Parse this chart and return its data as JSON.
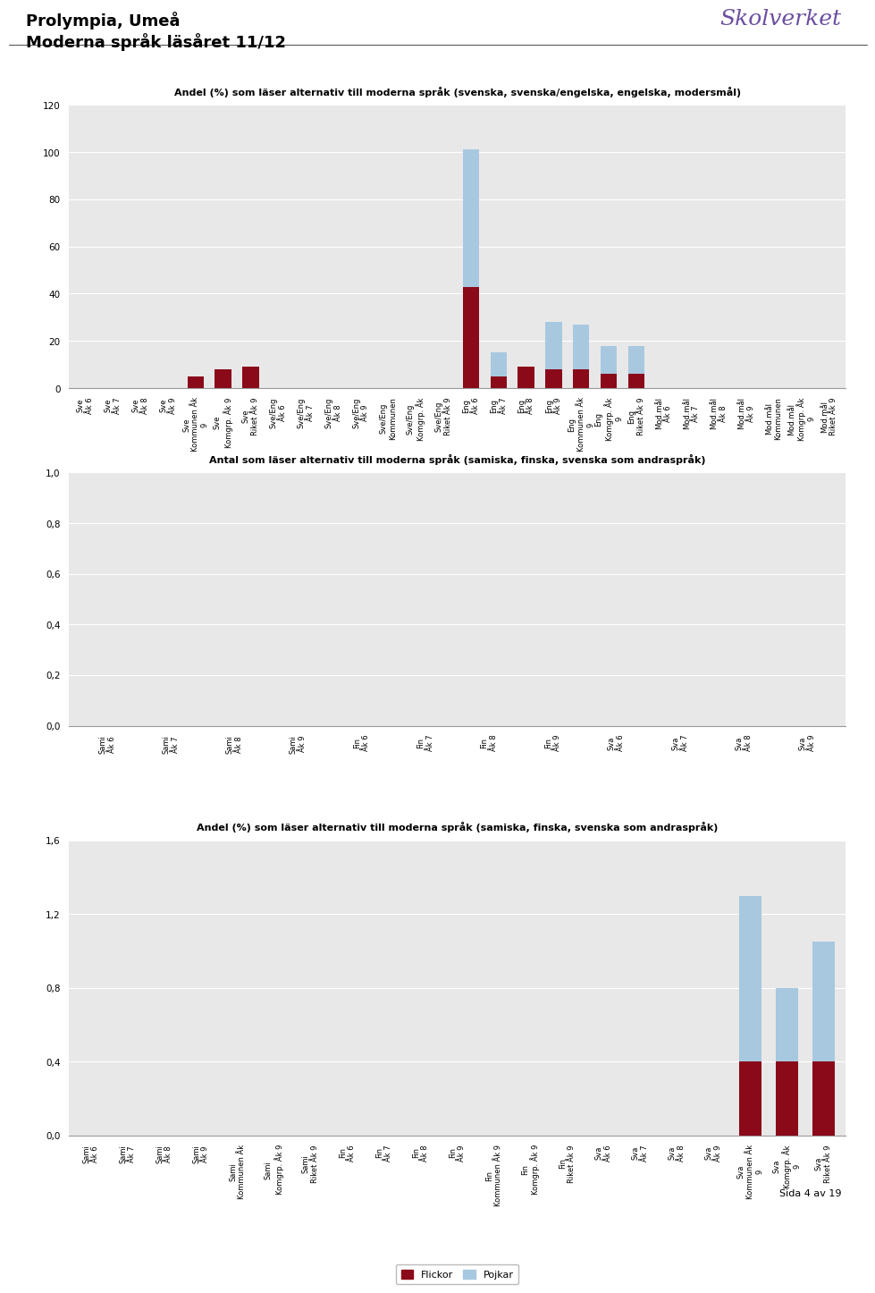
{
  "title_main": "Prolympia, Umeå",
  "subtitle_main": "Moderna språk läsåret 11/12",
  "skolverket_text": "Skolverket",
  "page_num": "Sida 4 av 19",
  "chart1_title": "Andel (%) som läser alternativ till moderna språk (svenska, svenska/engelska, engelska, modersmål)",
  "chart1_categories": [
    "Sve\nÅk 6",
    "Sve\nÅk 7",
    "Sve\nÅk 8",
    "Sve\nÅk 9",
    "Sve\nKommunen Åk\n9",
    "Sve\nKomgrp. Åk 9",
    "Sve\nRiket Åk 9",
    "Sve/Eng\nÅk 6",
    "Sve/Eng\nÅk 7",
    "Sve/Eng\nÅk 8",
    "Sve/Eng\nÅk 9",
    "Sve/Eng\nKommunen",
    "Sve/Eng\nKomgrp. Åk",
    "Sve/Eng\nRiket Åk 9",
    "Eng\nÅk 6",
    "Eng\nÅk 7",
    "Eng\nÅk 8",
    "Eng\nÅk 9",
    "Eng\nKommunen Åk\n9",
    "Eng\nKomgrp. Åk\n9",
    "Eng\nRiket Åk 9",
    "Mod.mål\nÅk 6",
    "Mod.mål\nÅk 7",
    "Mod.mål\nÅk 8",
    "Mod.mål\nÅk 9",
    "Mod.mål\nKommunen",
    "Mod.mål\nKomgrp. Åk\n9",
    "Mod.mål\nRiket Åk 9"
  ],
  "chart1_flickor": [
    0,
    0,
    0,
    0,
    5,
    8,
    9,
    0,
    0,
    0,
    0,
    0,
    0,
    0,
    43,
    5,
    9,
    8,
    8,
    6,
    6,
    0,
    0,
    0,
    0,
    0,
    0,
    0
  ],
  "chart1_pojkar": [
    0,
    0,
    0,
    0,
    0,
    0,
    0,
    0,
    0,
    0,
    0,
    0,
    0,
    0,
    58,
    10,
    0,
    20,
    19,
    12,
    12,
    0,
    0,
    0,
    0,
    0,
    0,
    0
  ],
  "chart1_ylim": [
    0,
    120
  ],
  "chart1_yticks": [
    0,
    20,
    40,
    60,
    80,
    100,
    120
  ],
  "chart2_title": "Antal som läser alternativ till moderna språk (samiska, finska, svenska som andraspråk)",
  "chart2_categories": [
    "Sami\nÅk 6",
    "Sami\nÅk 7",
    "Sami\nÅk 8",
    "Sami\nÅk 9",
    "Fin\nÅk 6",
    "Fin\nÅk 7",
    "Fin\nÅk 8",
    "Fin\nÅk 9",
    "Sva\nÅk 6",
    "Sva\nÅk 7",
    "Sva\nÅk 8",
    "Sva\nÅk 9"
  ],
  "chart2_flickor": [
    0,
    0,
    0,
    0,
    0,
    0,
    0,
    0,
    0,
    0,
    0,
    0
  ],
  "chart2_pojkar": [
    0,
    0,
    0,
    0,
    0,
    0,
    0,
    0,
    0,
    0,
    0,
    0
  ],
  "chart2_ylim": [
    0,
    1.0
  ],
  "chart2_yticks": [
    0.0,
    0.2,
    0.4,
    0.6,
    0.8,
    1.0
  ],
  "chart3_title": "Andel (%) som läser alternativ till moderna språk (samiska, finska, svenska som andraspråk)",
  "chart3_categories": [
    "Sami\nÅk 6",
    "Sami\nÅk 7",
    "Sami\nÅk 8",
    "Sami\nÅk 9",
    "Sami\nKommunen Åk",
    "Sami\nKomgrp. Åk 9",
    "Sami\nRiket Åk 9",
    "Fin\nÅk 6",
    "Fin\nÅk 7",
    "Fin\nÅk 8",
    "Fin\nÅk 9",
    "Fin\nKommunen Åk 9",
    "Fin\nKomgrp. Åk 9",
    "Fin\nRiket Åk 9",
    "Sva\nÅk 6",
    "Sva\nÅk 7",
    "Sva\nÅk 8",
    "Sva\nÅk 9",
    "Sva\nKommunen Åk\n9",
    "Sva\nKomgrp. Åk\n9",
    "Sva\nRiket Åk 9"
  ],
  "chart3_flickor": [
    0,
    0,
    0,
    0,
    0,
    0,
    0,
    0,
    0,
    0,
    0,
    0,
    0,
    0,
    0,
    0,
    0,
    0,
    0.4,
    0.4,
    0.4
  ],
  "chart3_pojkar": [
    0,
    0,
    0,
    0,
    0,
    0,
    0,
    0,
    0,
    0,
    0,
    0,
    0,
    0,
    0,
    0,
    0,
    0,
    0.9,
    0.4,
    0.65
  ],
  "chart3_ylim": [
    0,
    1.6
  ],
  "chart3_yticks": [
    0.0,
    0.4,
    0.8,
    1.2,
    1.6
  ],
  "flickor_color": "#8B0A1A",
  "pojkar_color": "#A8C8E0",
  "background_color": "#E8E8E8",
  "grid_color": "#FFFFFF",
  "bar_width": 0.6
}
